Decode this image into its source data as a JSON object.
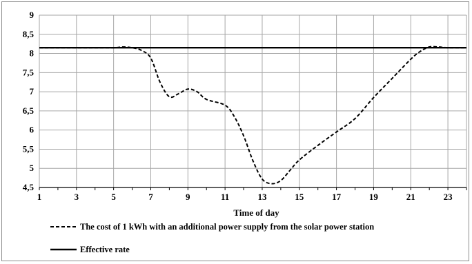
{
  "chart_data": {
    "type": "line",
    "title": "",
    "xlabel": "Time of day",
    "ylabel": "",
    "xlim": [
      1,
      24
    ],
    "ylim": [
      4.5,
      9
    ],
    "x_ticks": [
      1,
      3,
      5,
      7,
      9,
      11,
      13,
      15,
      17,
      19,
      21,
      23
    ],
    "y_ticks": [
      "4,5",
      "5",
      "5,5",
      "6",
      "6,5",
      "7",
      "7,5",
      "8",
      "8,5",
      "9"
    ],
    "y_tick_values": [
      4.5,
      5,
      5.5,
      6,
      6.5,
      7,
      7.5,
      8,
      8.5,
      9
    ],
    "grid": true,
    "legend_position": "bottom",
    "series": [
      {
        "name": "The cost of 1 kWh with an additional power supply from the solar power station",
        "style": "dashed",
        "color": "#000000",
        "x": [
          1,
          2,
          3,
          4,
          5,
          5.5,
          6,
          6.5,
          7,
          7.5,
          8,
          8.5,
          9,
          9.5,
          10,
          11,
          11.5,
          12,
          12.5,
          13,
          13.5,
          14,
          14.5,
          15,
          16,
          17,
          18,
          19,
          20,
          21,
          21.5,
          22,
          22.5,
          23,
          24
        ],
        "y": [
          8.15,
          8.15,
          8.15,
          8.15,
          8.15,
          8.17,
          8.15,
          8.08,
          7.88,
          7.25,
          6.87,
          6.95,
          7.07,
          7.0,
          6.8,
          6.65,
          6.35,
          5.85,
          5.2,
          4.72,
          4.6,
          4.68,
          4.95,
          5.22,
          5.6,
          5.95,
          6.3,
          6.85,
          7.35,
          7.85,
          8.05,
          8.17,
          8.17,
          8.15,
          8.15
        ]
      },
      {
        "name": "Effective rate",
        "style": "solid",
        "color": "#000000",
        "x": [
          1,
          24
        ],
        "y": [
          8.15,
          8.15
        ]
      }
    ]
  }
}
